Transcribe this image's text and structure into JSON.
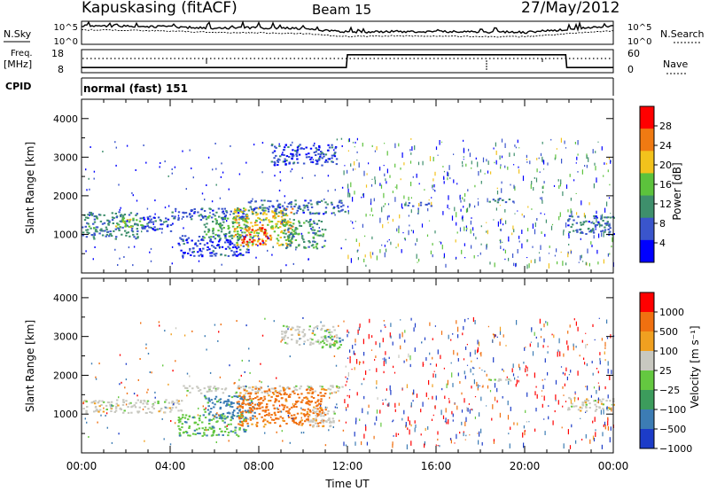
{
  "header": {
    "station": "Kapuskasing (fitACF)",
    "beam": "Beam 15",
    "date": "27/May/2012"
  },
  "noise_panel": {
    "left_label": "N.Sky",
    "right_label": "N.Search",
    "y_ticks": [
      "10^5",
      "10^0"
    ],
    "log_scale": true
  },
  "freq_panel": {
    "left_label": "Freq.",
    "left_unit": "[MHz]",
    "right_label": "Nave",
    "left_ticks": [
      "18",
      "8"
    ],
    "right_ticks": [
      "60",
      "0"
    ]
  },
  "cpid": {
    "label": "CPID",
    "value": "normal (fast) 151"
  },
  "power_panel": {
    "ylabel": "Slant Range [km]",
    "y_ticks": [
      "4000",
      "3000",
      "2000",
      "1000"
    ],
    "colorbar_label": "Power [dB]",
    "colorbar_ticks": [
      "28",
      "24",
      "20",
      "16",
      "12",
      "8",
      "4"
    ],
    "colors": [
      "#0000ff",
      "#3a55cc",
      "#3e8f6c",
      "#5cc23c",
      "#f2c21c",
      "#f07a12",
      "#ff0000"
    ]
  },
  "velocity_panel": {
    "ylabel": "Slant Range [km]",
    "y_ticks": [
      "4000",
      "3000",
      "2000",
      "1000"
    ],
    "colorbar_label": "Velocity [m s⁻¹]",
    "colorbar_ticks": [
      "1000",
      "500",
      "100",
      "25",
      "−25",
      "−100",
      "−500",
      "−1000"
    ],
    "colors": [
      "#1c3cc8",
      "#3c7cb4",
      "#3c9c5c",
      "#64c840",
      "#c8c8c0",
      "#f0a020",
      "#f07010",
      "#ff0000"
    ]
  },
  "x_axis": {
    "label": "Time UT",
    "ticks": [
      "00:00",
      "04:00",
      "08:00",
      "12:00",
      "16:00",
      "20:00",
      "00:00"
    ]
  },
  "chart_data": [
    {
      "type": "line",
      "name": "noise",
      "x": [
        0,
        2,
        4,
        6,
        8,
        10,
        12,
        14,
        16,
        18,
        20,
        22,
        24
      ],
      "series": [
        {
          "values": [
            4.2,
            4.1,
            3.9,
            3.6,
            3.7,
            3.5,
            2.6,
            2.8,
            2.8,
            2.7,
            2.6,
            3.3,
            4.2
          ]
        },
        {
          "values": [
            3.2,
            3.1,
            2.9,
            2.6,
            2.5,
            2.3,
            1.6,
            1.8,
            1.7,
            1.6,
            1.6,
            2.3,
            3.0
          ]
        }
      ],
      "ylim": [
        0,
        5
      ]
    },
    {
      "type": "line",
      "name": "frequency",
      "x": [
        0,
        11.95,
        12.0,
        21.85,
        21.9,
        24
      ],
      "values": [
        10,
        10,
        16,
        16,
        10,
        10
      ],
      "ylim": [
        8,
        18
      ]
    },
    {
      "type": "heatmap",
      "name": "power",
      "xlim": [
        0,
        24
      ],
      "ylim": [
        0,
        4500
      ],
      "regions": [
        {
          "x": [
            0,
            2.5
          ],
          "y": [
            900,
            1600
          ],
          "value": 10
        },
        {
          "x": [
            1.5,
            2.8
          ],
          "y": [
            1200,
            1450
          ],
          "value": 18
        },
        {
          "x": [
            2.5,
            4.0
          ],
          "y": [
            1100,
            1500
          ],
          "value": 7
        },
        {
          "x": [
            4.0,
            7.5
          ],
          "y": [
            1400,
            1700
          ],
          "value": 7
        },
        {
          "x": [
            4.3,
            7.5
          ],
          "y": [
            450,
            1000
          ],
          "value": 6
        },
        {
          "x": [
            5.5,
            7.5
          ],
          "y": [
            900,
            1500
          ],
          "value": 13
        },
        {
          "x": [
            6.8,
            9.5
          ],
          "y": [
            700,
            1700
          ],
          "value": 20
        },
        {
          "x": [
            7.2,
            8.5
          ],
          "y": [
            750,
            1200
          ],
          "value": 27
        },
        {
          "x": [
            9.0,
            11.0
          ],
          "y": [
            650,
            1400
          ],
          "value": 12
        },
        {
          "x": [
            7.5,
            11.9
          ],
          "y": [
            1550,
            1900
          ],
          "value": 8
        },
        {
          "x": [
            8.5,
            11.5
          ],
          "y": [
            2800,
            3350
          ],
          "value": 6
        },
        {
          "x": [
            14.5,
            15.8
          ],
          "y": [
            1750,
            1850
          ],
          "value": 7
        },
        {
          "x": [
            18.2,
            19.5
          ],
          "y": [
            1850,
            1950
          ],
          "value": 8
        },
        {
          "x": [
            21.9,
            24
          ],
          "y": [
            1000,
            1500
          ],
          "value": 8
        }
      ]
    },
    {
      "type": "heatmap",
      "name": "velocity",
      "xlim": [
        0,
        24
      ],
      "ylim": [
        0,
        4500
      ],
      "regions": [
        {
          "x": [
            0,
            4.5
          ],
          "y": [
            1050,
            1400
          ],
          "value": 0
        },
        {
          "x": [
            4.5,
            11.8
          ],
          "y": [
            1550,
            1750
          ],
          "value": 0
        },
        {
          "x": [
            4.3,
            7.5
          ],
          "y": [
            450,
            1000
          ],
          "value": 80
        },
        {
          "x": [
            5.5,
            7.8
          ],
          "y": [
            900,
            1500
          ],
          "value": 120
        },
        {
          "x": [
            7.0,
            11.0
          ],
          "y": [
            700,
            1700
          ],
          "value": -120
        },
        {
          "x": [
            10.2,
            11.4
          ],
          "y": [
            700,
            1200
          ],
          "value": 0
        },
        {
          "x": [
            9.0,
            11.5
          ],
          "y": [
            2800,
            3300
          ],
          "value": 0
        },
        {
          "x": [
            10.8,
            11.8
          ],
          "y": [
            2700,
            3050
          ],
          "value": 80
        },
        {
          "x": [
            18.2,
            19.4
          ],
          "y": [
            1880,
            1930
          ],
          "value": 0
        },
        {
          "x": [
            21.9,
            24
          ],
          "y": [
            1100,
            1450
          ],
          "value": 0
        }
      ]
    }
  ]
}
